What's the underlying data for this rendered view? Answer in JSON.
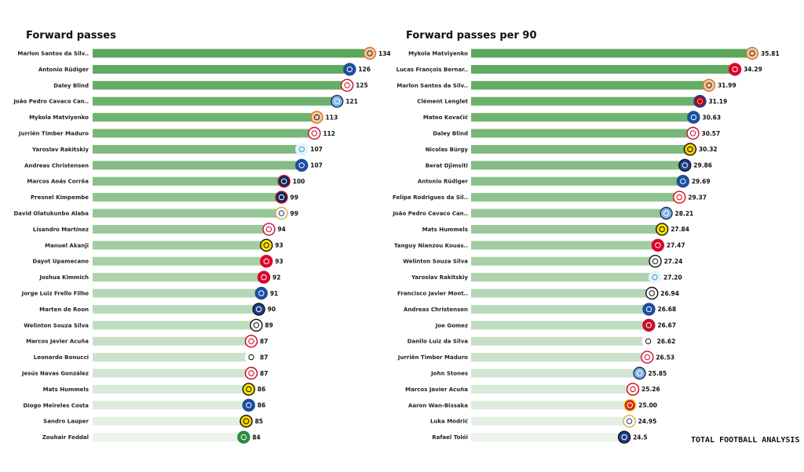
{
  "chart_data": [
    {
      "type": "bar",
      "orientation": "horizontal",
      "title": "Forward passes",
      "xlim": [
        0,
        134
      ],
      "categories": [
        "Marlon Santos da Silv..",
        "Antonio Rüdiger",
        "Daley Blind",
        "João Pedro Cavaco Can..",
        "Mykola Matviyenko",
        "Jurriën Timber Maduro",
        "Yaroslav Rakitskiy",
        "Andreas Christensen",
        "Marcos  Aoás Corrêa",
        "Presnel Kimpembe",
        "David Olatukunbo Alaba",
        "Lisandro Martínez",
        "Manuel Akanji",
        "Dayot Upamecano",
        "Joshua Kimmich",
        "Jorge Luiz Frello Filho",
        "Marten de Roon",
        "Welinton Souza Silva",
        "Marcos Javier Acuña",
        "Leonardo Bonucci",
        "Jesús Navas González",
        "Mats  Hummels",
        "Diogo Meireles Costa",
        "Sandro Lauper",
        "Zouhair Feddal"
      ],
      "values": [
        134,
        126,
        125,
        121,
        113,
        112,
        107,
        107,
        100,
        99,
        99,
        94,
        93,
        93,
        92,
        91,
        90,
        89,
        87,
        87,
        87,
        86,
        86,
        85,
        84
      ],
      "value_labels": [
        "134",
        "126",
        "125",
        "121",
        "113",
        "112",
        "107",
        "107",
        "100",
        "99",
        "99",
        "94",
        "93",
        "93",
        "92",
        "91",
        "90",
        "89",
        "87",
        "87",
        "87",
        "86",
        "86",
        "85",
        "84"
      ],
      "badges": [
        "shakhtar",
        "chelsea",
        "ajax",
        "mancity",
        "shakhtar",
        "ajax",
        "zenit",
        "chelsea",
        "psg",
        "psg",
        "realmadrid",
        "ajax",
        "dortmund",
        "bayern",
        "bayern",
        "chelsea",
        "atalanta",
        "besiktas",
        "sevilla",
        "juventus",
        "sevilla",
        "dortmund",
        "porto",
        "youngboys",
        "sporting"
      ],
      "grid": false,
      "legend": "none"
    },
    {
      "type": "bar",
      "orientation": "horizontal",
      "title": "Forward passes per 90",
      "xlim": [
        0,
        35.81
      ],
      "categories": [
        "Mykola Matviyenko",
        "Lucas François Bernar..",
        "Marlon Santos da Silv..",
        "Clément Lenglet",
        "Mateo Kovačić",
        "Daley Blind",
        "Nicolas Bürgy",
        "Berat  Djimsiti",
        "Antonio Rüdiger",
        "Felipe Rodrigues da Sil..",
        "João Pedro Cavaco Can..",
        "Mats  Hummels",
        "Tanguy Nianzou Kouas..",
        "Welinton Souza Silva",
        "Yaroslav Rakitskiy",
        "Francisco Javier Mont..",
        "Andreas Christensen",
        "Joe Gomez",
        "Danilo Luiz da Silva",
        "Jurriën Timber Maduro",
        "John Stones",
        "Marcos Javier Acuña",
        "Aaron Wan-Bissaka",
        "Luka Modrić",
        "Rafael Tolói"
      ],
      "values": [
        35.81,
        34.29,
        31.99,
        31.19,
        30.63,
        30.57,
        30.32,
        29.86,
        29.69,
        29.37,
        28.21,
        27.84,
        27.47,
        27.24,
        27.2,
        26.94,
        26.68,
        26.67,
        26.62,
        26.53,
        25.85,
        25.26,
        25.0,
        24.95,
        24.5
      ],
      "value_labels": [
        "35.81",
        "34.29",
        "31.99",
        "31.19",
        "30.63",
        "30.57",
        "30.32",
        "29.86",
        "29.69",
        "29.37",
        "28.21",
        "27.84",
        "27.47",
        "27.24",
        "27.20",
        "26.94",
        "26.68",
        "26.67",
        "26.62",
        "26.53",
        "25.85",
        "25.26",
        "25.00",
        "24.95",
        "24.5"
      ],
      "badges": [
        "shakhtar",
        "bayern",
        "shakhtar",
        "barcelona",
        "chelsea",
        "ajax",
        "youngboys",
        "atalanta",
        "chelsea",
        "benfica",
        "mancity",
        "dortmund",
        "bayern",
        "besiktas",
        "zenit",
        "besiktas",
        "chelsea",
        "liverpool",
        "juventus",
        "ajax",
        "mancity",
        "sevilla",
        "manutd",
        "realmadrid",
        "atalanta"
      ],
      "grid": false,
      "legend": "none"
    }
  ],
  "watermark": "TOTAL FOOTBALL ANALYSIS",
  "colors": {
    "bar_dark": "#5aa65a",
    "bar_light": "#eaf2ea",
    "badges": {
      "shakhtar": {
        "bg": "#f2c9a0",
        "ring": "#e07020",
        "fg": "#222"
      },
      "chelsea": {
        "bg": "#1a4f9c",
        "ring": "#1a4f9c",
        "fg": "#fff"
      },
      "ajax": {
        "bg": "#ffffff",
        "ring": "#c8102e",
        "fg": "#c8102e"
      },
      "mancity": {
        "bg": "#7fb3e0",
        "ring": "#1c2c5b",
        "fg": "#fff"
      },
      "zenit": {
        "bg": "#e6f4fb",
        "ring": "#e6f4fb",
        "fg": "#29a0d8"
      },
      "psg": {
        "bg": "#0b2a5c",
        "ring": "#c8102e",
        "fg": "#fff"
      },
      "realmadrid": {
        "bg": "#ffffff",
        "ring": "#d4b04a",
        "fg": "#1a3a8c"
      },
      "dortmund": {
        "bg": "#fde100",
        "ring": "#111111",
        "fg": "#111"
      },
      "bayern": {
        "bg": "#dc052d",
        "ring": "#dc052d",
        "fg": "#fff"
      },
      "atalanta": {
        "bg": "#1e3f8c",
        "ring": "#111111",
        "fg": "#fff"
      },
      "besiktas": {
        "bg": "#ffffff",
        "ring": "#111111",
        "fg": "#111"
      },
      "sevilla": {
        "bg": "#ffffff",
        "ring": "#d0021b",
        "fg": "#d0021b"
      },
      "juventus": {
        "bg": "#ffffff",
        "ring": "#ffffff",
        "fg": "#111"
      },
      "porto": {
        "bg": "#1b4c9e",
        "ring": "#1b4c9e",
        "fg": "#fff"
      },
      "youngboys": {
        "bg": "#f6d200",
        "ring": "#111111",
        "fg": "#111"
      },
      "sporting": {
        "bg": "#2f8a3c",
        "ring": "#2f8a3c",
        "fg": "#fff"
      },
      "barcelona": {
        "bg": "#a50044",
        "ring": "#004d98",
        "fg": "#edbb00"
      },
      "benfica": {
        "bg": "#ffffff",
        "ring": "#e30613",
        "fg": "#e30613"
      },
      "liverpool": {
        "bg": "#c8102e",
        "ring": "#c8102e",
        "fg": "#fff"
      },
      "manutd": {
        "bg": "#da291c",
        "ring": "#fbe122",
        "fg": "#fff"
      }
    }
  }
}
